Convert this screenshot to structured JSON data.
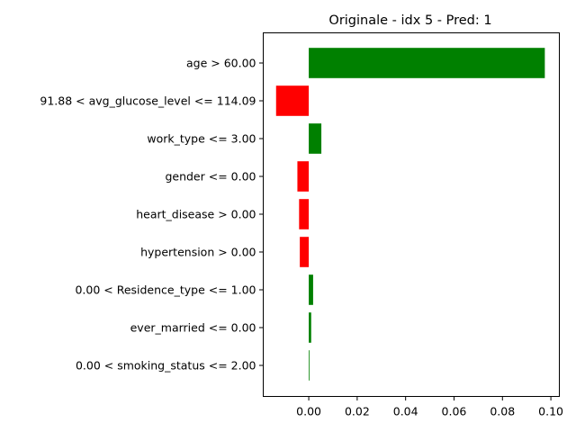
{
  "chart_data": {
    "type": "bar",
    "orientation": "horizontal",
    "title": "Originale - idx 5 - Pred: 1",
    "xlabel": "",
    "ylabel": "",
    "categories": [
      "age > 60.00",
      "91.88 < avg_glucose_level <= 114.09",
      "work_type <= 3.00",
      "gender <= 0.00",
      "heart_disease > 0.00",
      "hypertension > 0.00",
      "0.00 < Residence_type <= 1.00",
      "ever_married <= 0.00",
      "0.00 < smoking_status <= 2.00"
    ],
    "values": [
      0.0975,
      -0.0135,
      0.0052,
      -0.0047,
      -0.004,
      -0.0037,
      0.0018,
      0.001,
      0.0002
    ],
    "xlim": [
      -0.0188,
      0.1035
    ],
    "xticks": [
      0.0,
      0.02,
      0.04,
      0.06,
      0.08,
      0.1
    ],
    "xtick_labels": [
      "0.00",
      "0.02",
      "0.04",
      "0.06",
      "0.08",
      "0.10"
    ],
    "grid": false,
    "colors": {
      "positive": "#008000",
      "negative": "#ff0000"
    }
  }
}
